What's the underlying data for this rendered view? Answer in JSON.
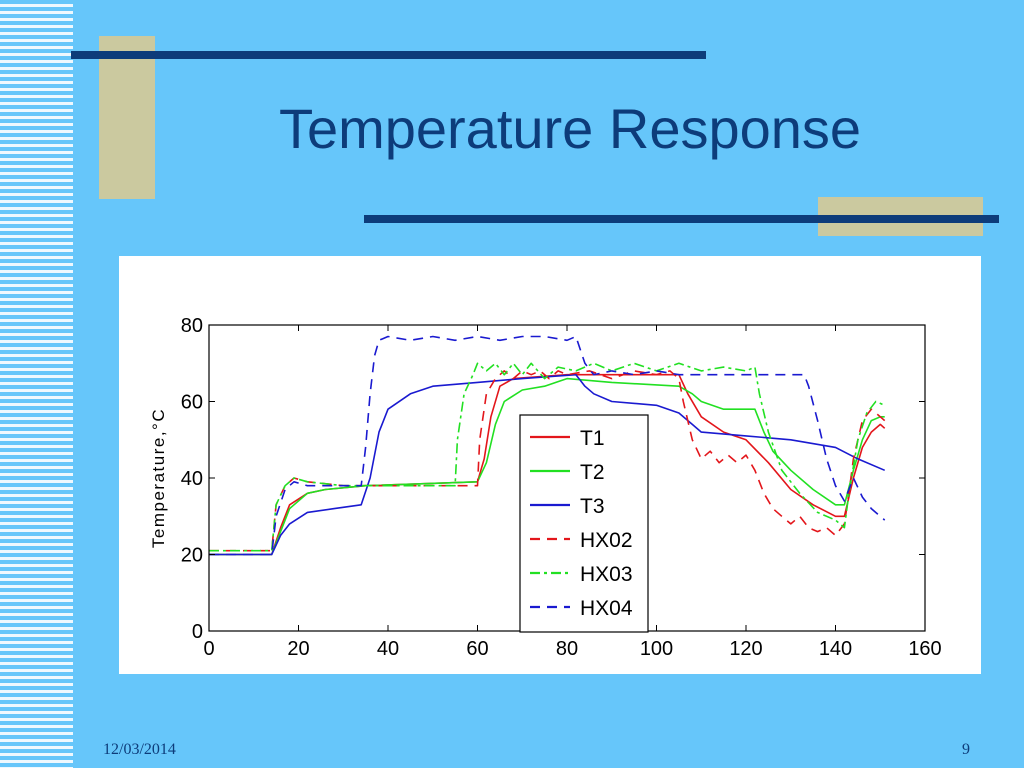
{
  "slide": {
    "title": "Temperature Response",
    "date": "12/03/2014",
    "page_number": "9"
  },
  "colors": {
    "background": "#66c6fa",
    "accent_bar": "#0d3c7a",
    "accent_block": "#cbc99f",
    "red": "#e3161b",
    "green": "#22e022",
    "blue": "#1a1ad0"
  },
  "chart_data": {
    "type": "line",
    "title": "",
    "xlabel": "",
    "ylabel": "Temperature,°C",
    "xlim": [
      0,
      160
    ],
    "ylim": [
      0,
      80
    ],
    "x_ticks": [
      0,
      20,
      40,
      60,
      80,
      100,
      120,
      140,
      160
    ],
    "y_ticks": [
      0,
      20,
      40,
      60,
      80
    ],
    "grid": false,
    "legend_position": "center",
    "series": [
      {
        "name": "T1",
        "style": "solid",
        "color": "#e3161b",
        "points": [
          [
            0,
            20
          ],
          [
            14,
            20
          ],
          [
            16,
            27
          ],
          [
            18,
            33
          ],
          [
            22,
            36
          ],
          [
            26,
            37
          ],
          [
            35,
            38
          ],
          [
            60,
            39
          ],
          [
            61.5,
            45
          ],
          [
            63,
            56
          ],
          [
            65,
            64
          ],
          [
            68,
            66
          ],
          [
            80,
            67
          ],
          [
            105,
            67
          ],
          [
            107,
            62
          ],
          [
            110,
            56
          ],
          [
            115,
            52
          ],
          [
            120,
            50
          ],
          [
            125,
            44
          ],
          [
            130,
            37
          ],
          [
            135,
            33
          ],
          [
            140,
            30
          ],
          [
            142,
            30
          ],
          [
            144,
            40
          ],
          [
            146,
            48
          ],
          [
            148,
            52
          ],
          [
            150,
            54
          ],
          [
            151,
            53
          ]
        ]
      },
      {
        "name": "T2",
        "style": "solid",
        "color": "#22e022",
        "points": [
          [
            0,
            20
          ],
          [
            14,
            20
          ],
          [
            16,
            26
          ],
          [
            18,
            32
          ],
          [
            22,
            36
          ],
          [
            26,
            37
          ],
          [
            35,
            38
          ],
          [
            60,
            39
          ],
          [
            62,
            44
          ],
          [
            64,
            54
          ],
          [
            66,
            60
          ],
          [
            70,
            63
          ],
          [
            75,
            64
          ],
          [
            80,
            66
          ],
          [
            90,
            65
          ],
          [
            105,
            64
          ],
          [
            108,
            62
          ],
          [
            110,
            60
          ],
          [
            115,
            58
          ],
          [
            122,
            58
          ],
          [
            124,
            52
          ],
          [
            126,
            47
          ],
          [
            130,
            42
          ],
          [
            135,
            37
          ],
          [
            140,
            33
          ],
          [
            142,
            33
          ],
          [
            144,
            42
          ],
          [
            146,
            50
          ],
          [
            148,
            55
          ],
          [
            150,
            56
          ],
          [
            151,
            56
          ]
        ]
      },
      {
        "name": "T3",
        "style": "solid",
        "color": "#1a1ad0",
        "points": [
          [
            0,
            20
          ],
          [
            14,
            20
          ],
          [
            16,
            25
          ],
          [
            18,
            28
          ],
          [
            22,
            31
          ],
          [
            28,
            32
          ],
          [
            34,
            33
          ],
          [
            36,
            40
          ],
          [
            38,
            52
          ],
          [
            40,
            58
          ],
          [
            45,
            62
          ],
          [
            50,
            64
          ],
          [
            60,
            65
          ],
          [
            70,
            66
          ],
          [
            82,
            67
          ],
          [
            84,
            64
          ],
          [
            86,
            62
          ],
          [
            90,
            60
          ],
          [
            100,
            59
          ],
          [
            105,
            57
          ],
          [
            108,
            54
          ],
          [
            110,
            52
          ],
          [
            120,
            51
          ],
          [
            130,
            50
          ],
          [
            140,
            48
          ],
          [
            145,
            45
          ],
          [
            151,
            42
          ]
        ]
      },
      {
        "name": "HX02",
        "style": "dashed",
        "color": "#e3161b",
        "points": [
          [
            0,
            21
          ],
          [
            14,
            21
          ],
          [
            15,
            33
          ],
          [
            17,
            38
          ],
          [
            19,
            40
          ],
          [
            22,
            39
          ],
          [
            30,
            38
          ],
          [
            58,
            38
          ],
          [
            60,
            38
          ],
          [
            60.5,
            50
          ],
          [
            62,
            62
          ],
          [
            64,
            66
          ],
          [
            66,
            68
          ],
          [
            68,
            66
          ],
          [
            70,
            68
          ],
          [
            72,
            67
          ],
          [
            74,
            68
          ],
          [
            76,
            66
          ],
          [
            78,
            68
          ],
          [
            80,
            67
          ],
          [
            85,
            68
          ],
          [
            90,
            66
          ],
          [
            95,
            68
          ],
          [
            100,
            67
          ],
          [
            103,
            68
          ],
          [
            105,
            66
          ],
          [
            106,
            60
          ],
          [
            108,
            50
          ],
          [
            110,
            45
          ],
          [
            112,
            47
          ],
          [
            114,
            44
          ],
          [
            116,
            46
          ],
          [
            118,
            44
          ],
          [
            120,
            46
          ],
          [
            122,
            42
          ],
          [
            124,
            36
          ],
          [
            126,
            32
          ],
          [
            128,
            30
          ],
          [
            130,
            28
          ],
          [
            132,
            30
          ],
          [
            134,
            27
          ],
          [
            136,
            26
          ],
          [
            138,
            27
          ],
          [
            140,
            25
          ],
          [
            142,
            28
          ],
          [
            143,
            36
          ],
          [
            144,
            45
          ],
          [
            146,
            55
          ],
          [
            148,
            58
          ],
          [
            150,
            56
          ],
          [
            151,
            55
          ]
        ]
      },
      {
        "name": "HX03",
        "style": "dashdot",
        "color": "#22e022",
        "points": [
          [
            0,
            21
          ],
          [
            14,
            21
          ],
          [
            15,
            33
          ],
          [
            17,
            38
          ],
          [
            19,
            40
          ],
          [
            22,
            39
          ],
          [
            30,
            38
          ],
          [
            54,
            38
          ],
          [
            55,
            38
          ],
          [
            55.5,
            50
          ],
          [
            57,
            62
          ],
          [
            59,
            67
          ],
          [
            60,
            70
          ],
          [
            62,
            68
          ],
          [
            64,
            70
          ],
          [
            66,
            67
          ],
          [
            68,
            70
          ],
          [
            70,
            67
          ],
          [
            72,
            70
          ],
          [
            75,
            66
          ],
          [
            78,
            69
          ],
          [
            82,
            68
          ],
          [
            86,
            70
          ],
          [
            90,
            68
          ],
          [
            95,
            70
          ],
          [
            100,
            68
          ],
          [
            105,
            70
          ],
          [
            110,
            68
          ],
          [
            115,
            69
          ],
          [
            120,
            68
          ],
          [
            122,
            69
          ],
          [
            123,
            62
          ],
          [
            125,
            52
          ],
          [
            128,
            42
          ],
          [
            132,
            36
          ],
          [
            136,
            31
          ],
          [
            140,
            29
          ],
          [
            142,
            27
          ],
          [
            143,
            36
          ],
          [
            145,
            50
          ],
          [
            147,
            57
          ],
          [
            149,
            60
          ],
          [
            151,
            59
          ]
        ]
      },
      {
        "name": "HX04",
        "style": "dashed",
        "color": "#1a1ad0",
        "points": [
          [
            0,
            20
          ],
          [
            14,
            20
          ],
          [
            15,
            30
          ],
          [
            17,
            37
          ],
          [
            19,
            39
          ],
          [
            22,
            38
          ],
          [
            30,
            38
          ],
          [
            34,
            38
          ],
          [
            35,
            48
          ],
          [
            36,
            62
          ],
          [
            37,
            72
          ],
          [
            38,
            76
          ],
          [
            40,
            77
          ],
          [
            45,
            76
          ],
          [
            50,
            77
          ],
          [
            55,
            76
          ],
          [
            60,
            77
          ],
          [
            65,
            76
          ],
          [
            70,
            77
          ],
          [
            75,
            77
          ],
          [
            80,
            76
          ],
          [
            82,
            77
          ],
          [
            84,
            70
          ],
          [
            86,
            67
          ],
          [
            90,
            68
          ],
          [
            95,
            67
          ],
          [
            100,
            68
          ],
          [
            105,
            67
          ],
          [
            110,
            67
          ],
          [
            120,
            67
          ],
          [
            125,
            67
          ],
          [
            133,
            67
          ],
          [
            134,
            64
          ],
          [
            136,
            55
          ],
          [
            138,
            45
          ],
          [
            140,
            38
          ],
          [
            142,
            34
          ],
          [
            144,
            40
          ],
          [
            146,
            35
          ],
          [
            148,
            32
          ],
          [
            151,
            29
          ]
        ]
      }
    ]
  }
}
